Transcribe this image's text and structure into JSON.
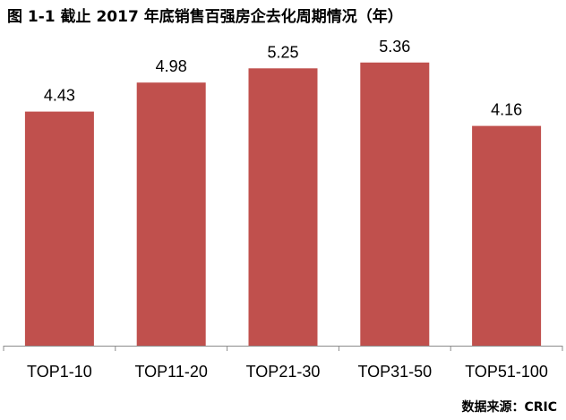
{
  "title": "图 1-1  截止 2017 年底销售百强房企去化周期情况（年）",
  "source": "数据来源：CRIC",
  "colors": {
    "bar": "#c0504d",
    "axis": "#8c8c8c",
    "text": "#000000"
  },
  "chart_data": {
    "type": "bar",
    "title": "图 1-1  截止 2017 年底销售百强房企去化周期情况（年）",
    "categories": [
      "TOP1-10",
      "TOP11-20",
      "TOP21-30",
      "TOP31-50",
      "TOP51-100"
    ],
    "values": [
      4.43,
      4.98,
      5.25,
      5.36,
      4.16
    ],
    "data_labels": [
      "4.43",
      "4.98",
      "5.25",
      "5.36",
      "4.16"
    ],
    "ylim": [
      0,
      6
    ],
    "grid": false,
    "legend": "none",
    "xlabel": "",
    "ylabel": ""
  }
}
